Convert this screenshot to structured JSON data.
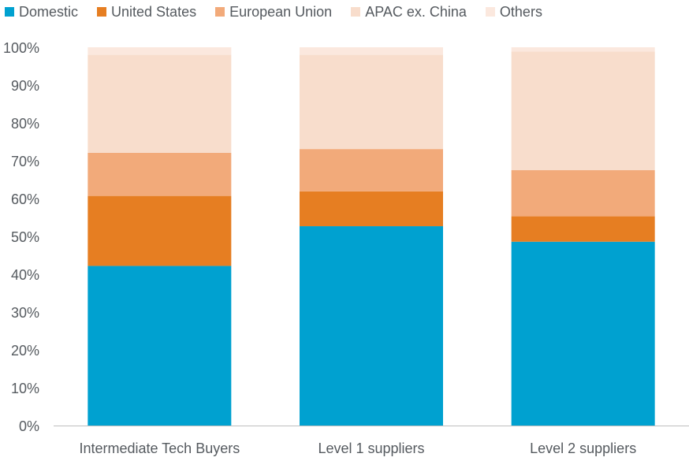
{
  "chart_data": {
    "type": "bar",
    "stacked": true,
    "categories": [
      "Intermediate Tech Buyers",
      "Level 1 suppliers",
      "Level 2 suppliers"
    ],
    "series": [
      {
        "name": "Domestic",
        "color": "#00a1d0",
        "values": [
          42.2,
          52.7,
          48.6
        ]
      },
      {
        "name": "United States",
        "color": "#e67e22",
        "values": [
          18.5,
          9.2,
          6.7
        ]
      },
      {
        "name": "European Union",
        "color": "#f2aa7a",
        "values": [
          11.4,
          11.2,
          12.2
        ]
      },
      {
        "name": "APAC ex. China",
        "color": "#f8ddcc",
        "values": [
          25.9,
          24.9,
          31.4
        ]
      },
      {
        "name": "Others",
        "color": "#fbe8de",
        "values": [
          2.0,
          2.0,
          1.1
        ]
      }
    ],
    "ylim": [
      0,
      100
    ],
    "yticks": [
      "0%",
      "10%",
      "20%",
      "30%",
      "40%",
      "50%",
      "60%",
      "70%",
      "80%",
      "90%",
      "100%"
    ],
    "title": "",
    "xlabel": "",
    "ylabel": "",
    "legend_position": "top-left",
    "grid": false
  }
}
